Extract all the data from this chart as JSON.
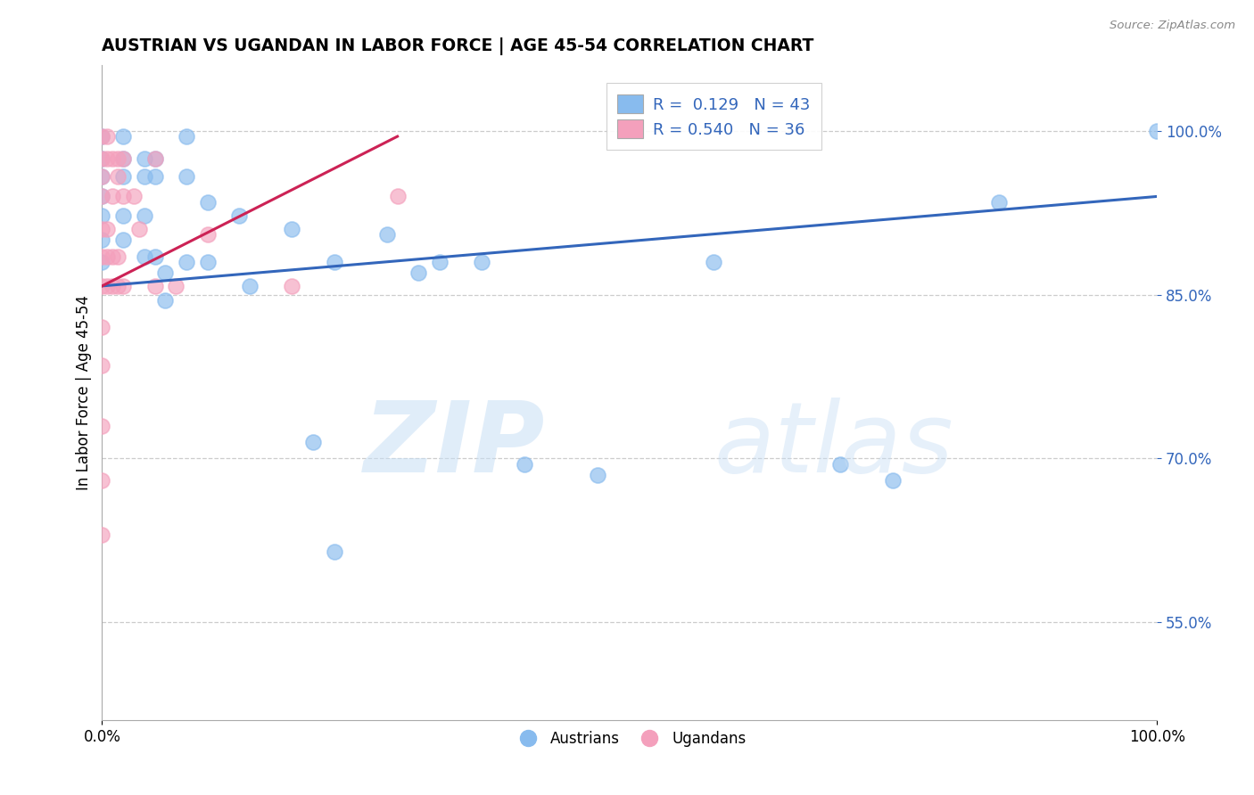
{
  "title": "AUSTRIAN VS UGANDAN IN LABOR FORCE | AGE 45-54 CORRELATION CHART",
  "source": "Source: ZipAtlas.com",
  "ylabel": "In Labor Force | Age 45-54",
  "xlim": [
    0,
    1
  ],
  "ylim": [
    0.46,
    1.06
  ],
  "yticks": [
    0.55,
    0.7,
    0.85,
    1.0
  ],
  "ytick_labels": [
    "55.0%",
    "70.0%",
    "85.0%",
    "100.0%"
  ],
  "xtick_labels": [
    "0.0%",
    "100.0%"
  ],
  "r_austrians": 0.129,
  "n_austrians": 43,
  "r_ugandans": 0.54,
  "n_ugandans": 36,
  "blue_color": "#88BBEE",
  "pink_color": "#F4A0BC",
  "line_blue": "#3366BB",
  "line_pink": "#CC2255",
  "legend_label_austrians": "Austrians",
  "legend_label_ugandans": "Ugandans",
  "austrians_x": [
    0.0,
    0.0,
    0.0,
    0.0,
    0.0,
    0.0,
    0.0,
    0.02,
    0.02,
    0.02,
    0.02,
    0.02,
    0.04,
    0.04,
    0.04,
    0.04,
    0.05,
    0.05,
    0.05,
    0.06,
    0.06,
    0.08,
    0.08,
    0.08,
    0.1,
    0.1,
    0.13,
    0.14,
    0.18,
    0.2,
    0.22,
    0.22,
    0.27,
    0.3,
    0.32,
    0.36,
    0.4,
    0.47,
    0.58,
    0.7,
    0.75,
    0.85,
    1.0
  ],
  "austrians_y": [
    0.995,
    0.975,
    0.958,
    0.94,
    0.922,
    0.9,
    0.88,
    0.995,
    0.975,
    0.958,
    0.922,
    0.9,
    0.975,
    0.958,
    0.922,
    0.885,
    0.975,
    0.958,
    0.885,
    0.87,
    0.845,
    0.995,
    0.958,
    0.88,
    0.935,
    0.88,
    0.922,
    0.858,
    0.91,
    0.715,
    0.88,
    0.615,
    0.905,
    0.87,
    0.88,
    0.88,
    0.695,
    0.685,
    0.88,
    0.695,
    0.68,
    0.935,
    1.0
  ],
  "ugandans_x": [
    0.0,
    0.0,
    0.0,
    0.0,
    0.0,
    0.0,
    0.0,
    0.0,
    0.0,
    0.0,
    0.0,
    0.0,
    0.005,
    0.005,
    0.005,
    0.005,
    0.005,
    0.01,
    0.01,
    0.01,
    0.01,
    0.015,
    0.015,
    0.015,
    0.015,
    0.02,
    0.02,
    0.02,
    0.03,
    0.035,
    0.05,
    0.05,
    0.07,
    0.1,
    0.18,
    0.28
  ],
  "ugandans_y": [
    0.995,
    0.975,
    0.958,
    0.94,
    0.91,
    0.885,
    0.858,
    0.82,
    0.785,
    0.73,
    0.68,
    0.63,
    0.995,
    0.975,
    0.91,
    0.885,
    0.858,
    0.975,
    0.94,
    0.885,
    0.858,
    0.975,
    0.958,
    0.885,
    0.858,
    0.975,
    0.94,
    0.858,
    0.94,
    0.91,
    0.975,
    0.858,
    0.858,
    0.905,
    0.858,
    0.94
  ],
  "blue_line_x0": 0.0,
  "blue_line_y0": 0.858,
  "blue_line_x1": 1.0,
  "blue_line_y1": 0.94,
  "pink_line_x0": 0.0,
  "pink_line_y0": 0.858,
  "pink_line_x1": 0.28,
  "pink_line_y1": 0.995
}
